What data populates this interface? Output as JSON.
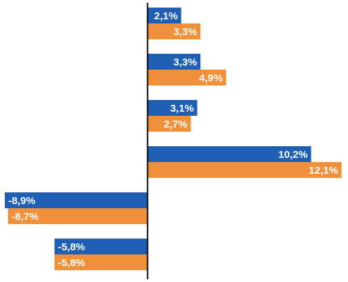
{
  "chart_data": {
    "type": "bar",
    "orientation": "horizontal",
    "categories": [
      "",
      "",
      "",
      "",
      "",
      ""
    ],
    "series": [
      {
        "color": "#1f5fb4",
        "values": [
          2.1,
          3.3,
          3.1,
          10.2,
          -8.9,
          -5.8
        ],
        "labels": [
          "2,1%",
          "3,3%",
          "3,1%",
          "10,2%",
          "-8,9%",
          "-5,8%"
        ]
      },
      {
        "color": "#f0903a",
        "values": [
          3.3,
          4.9,
          2.7,
          12.1,
          -8.7,
          -5.8
        ],
        "labels": [
          "3,3%",
          "4,9%",
          "2,7%",
          "12,1%",
          "-8,7%",
          "-5,8%"
        ]
      }
    ],
    "xlim": [
      -9.2,
      12.5
    ],
    "grid": false,
    "legend": "none",
    "data_labels": "inside-end"
  },
  "colors": {
    "axis": "#000000",
    "label_text": "#ffffff"
  }
}
